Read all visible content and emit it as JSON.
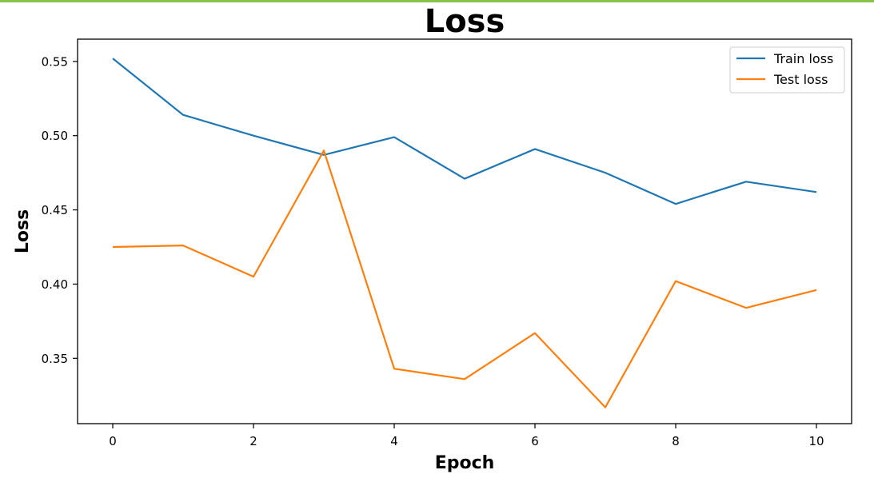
{
  "chart_data": {
    "type": "line",
    "title": "Loss",
    "xlabel": "Epoch",
    "ylabel": "Loss",
    "x": [
      0,
      1,
      2,
      3,
      4,
      5,
      6,
      7,
      8,
      9,
      10
    ],
    "xlim": [
      -0.5,
      10.5
    ],
    "ylim": [
      0.306,
      0.565
    ],
    "x_ticks": [
      0,
      2,
      4,
      6,
      8,
      10
    ],
    "y_ticks": [
      0.35,
      0.4,
      0.45,
      0.5,
      0.55
    ],
    "x_tick_labels": [
      "0",
      "2",
      "4",
      "6",
      "8",
      "10"
    ],
    "y_tick_labels": [
      "0.35",
      "0.40",
      "0.45",
      "0.50",
      "0.55"
    ],
    "grid": false,
    "legend_position": "top-right",
    "series": [
      {
        "name": "Train loss",
        "color": "#1f77b4",
        "values": [
          0.552,
          0.514,
          0.5,
          0.487,
          0.499,
          0.471,
          0.491,
          0.475,
          0.454,
          0.469,
          0.462
        ]
      },
      {
        "name": "Test loss",
        "color": "#ff7f0e",
        "values": [
          0.425,
          0.426,
          0.405,
          0.49,
          0.343,
          0.336,
          0.367,
          0.317,
          0.402,
          0.384,
          0.396
        ]
      }
    ]
  },
  "decor": {
    "top_rule_color": "#8bc34a"
  }
}
